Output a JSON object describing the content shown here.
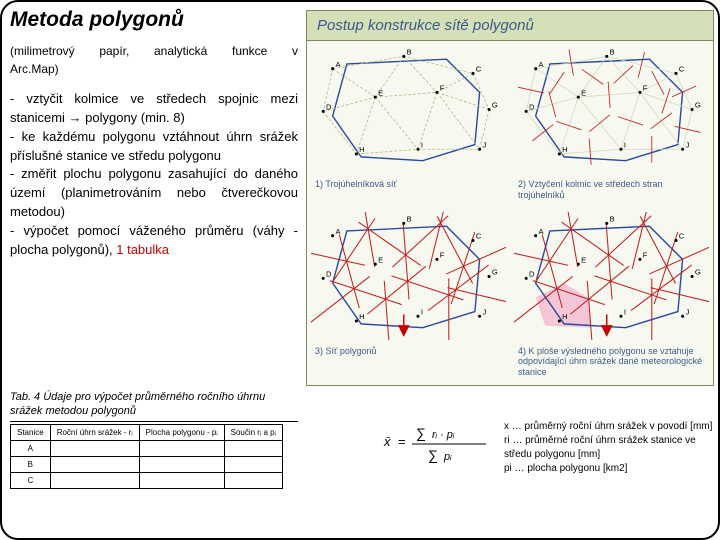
{
  "title": "Metoda polygonů",
  "subtitle_parts": [
    "(milimetrový",
    "papír,",
    "analytická",
    "funkce",
    "v",
    "Arc.Map)"
  ],
  "method_text": "- vztyčit kolmice ve středech spojnic mezi stanicemi → polygony (min. 8)\n- ke každému polygonu vztáhnout úhrn srážek příslušné stanice ve středu polygonu\n- změřit plochu polygonu zasahující do daného území (planimetrováním nebo čtverečkovou metodou)\n- výpočet pomocí váženého průměru (váhy - plocha polygonů), ",
  "method_red": "1 tabulka",
  "tab_caption": "Tab. 4  Údaje pro výpočet průměrného ročního úhrnu srážek metodou polygonů",
  "table": {
    "headers": [
      "Stanice",
      "Roční úhrn srážek - rᵢ",
      "Plocha polygonu - pᵢ",
      "Součin rᵢ a pᵢ"
    ],
    "rows": [
      "A",
      "B",
      "C"
    ]
  },
  "panel_header": "Postup konstrukce sítě polygonů",
  "diagrams": {
    "labels": [
      "A",
      "B",
      "C",
      "D",
      "E",
      "F",
      "G",
      "H",
      "I",
      "J"
    ],
    "captions": [
      "1) Trojúhelníková síť",
      "2) Vztyčení kolmic ve středech stran trojúhelníků",
      "3) Síť polygonů",
      "4) K ploše výsledného polygonu se vztahuje odpovídající úhrn srážek dané meteorologické stanice"
    ],
    "boundary_color": "#2a4aa0",
    "tri_color": "#a8b878",
    "perp_color": "#c02020",
    "poly_color": "#c02020",
    "shade_color": "#f5c6d6",
    "boundary": [
      [
        35,
        20
      ],
      [
        140,
        15
      ],
      [
        175,
        50
      ],
      [
        170,
        105
      ],
      [
        115,
        122
      ],
      [
        50,
        118
      ],
      [
        20,
        75
      ]
    ],
    "stations": {
      "A": [
        20,
        25
      ],
      "B": [
        95,
        12
      ],
      "C": [
        168,
        30
      ],
      "D": [
        10,
        70
      ],
      "E": [
        65,
        55
      ],
      "F": [
        130,
        50
      ],
      "G": [
        185,
        68
      ],
      "H": [
        45,
        115
      ],
      "I": [
        110,
        110
      ],
      "J": [
        175,
        110
      ]
    },
    "triangles": [
      [
        "A",
        "B"
      ],
      [
        "B",
        "C"
      ],
      [
        "A",
        "D"
      ],
      [
        "A",
        "E"
      ],
      [
        "B",
        "E"
      ],
      [
        "B",
        "F"
      ],
      [
        "C",
        "F"
      ],
      [
        "C",
        "G"
      ],
      [
        "D",
        "E"
      ],
      [
        "E",
        "F"
      ],
      [
        "F",
        "G"
      ],
      [
        "D",
        "H"
      ],
      [
        "E",
        "H"
      ],
      [
        "E",
        "I"
      ],
      [
        "F",
        "I"
      ],
      [
        "F",
        "J"
      ],
      [
        "G",
        "J"
      ],
      [
        "H",
        "I"
      ],
      [
        "I",
        "J"
      ]
    ]
  },
  "legend": {
    "x": "x … průměrný roční úhrn srážek v povodí [mm]",
    "ri": "ri … průměrné roční úhrn srážek stanice ve středu polygonu [mm]",
    "pi": "pi … plocha polygonu [km2]"
  },
  "colors": {
    "panel_bg": "#f7f9f0",
    "panel_border": "#7a8a5a",
    "header_bg": "#d6e0b8",
    "header_text": "#3a5a8a"
  }
}
